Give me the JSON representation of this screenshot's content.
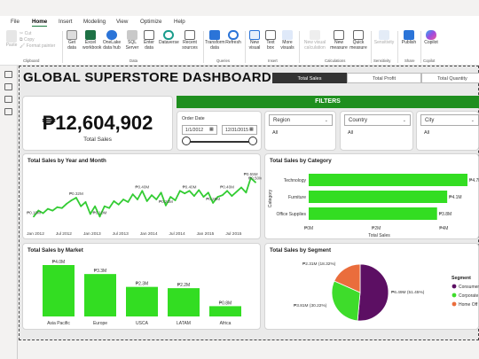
{
  "menu": {
    "items": [
      "File",
      "Home",
      "Insert",
      "Modeling",
      "View",
      "Optimize",
      "Help"
    ],
    "active": "Home"
  },
  "ribbon": {
    "buttons": [
      {
        "label": "Paste",
        "dim": true
      },
      {
        "label": "Cut",
        "dim": true
      },
      {
        "label": "Copy",
        "dim": true
      },
      {
        "label": "Format painter",
        "dim": true
      },
      {
        "label": "Get data",
        "dim": false
      },
      {
        "label": "Excel workbook",
        "dim": false
      },
      {
        "label": "OneLake data hub",
        "dim": false
      },
      {
        "label": "SQL Server",
        "dim": false
      },
      {
        "label": "Enter data",
        "dim": false
      },
      {
        "label": "Dataverse",
        "dim": false
      },
      {
        "label": "Recent sources",
        "dim": false
      },
      {
        "label": "Transform data",
        "dim": false
      },
      {
        "label": "Refresh",
        "dim": false
      },
      {
        "label": "New visual",
        "dim": false
      },
      {
        "label": "Text box",
        "dim": false
      },
      {
        "label": "More visuals",
        "dim": false
      },
      {
        "label": "New visual calculation",
        "dim": true
      },
      {
        "label": "New measure",
        "dim": false
      },
      {
        "label": "Quick measure",
        "dim": false
      },
      {
        "label": "Sensitivity",
        "dim": true
      },
      {
        "label": "Publish",
        "dim": false
      },
      {
        "label": "Copilot",
        "dim": false
      }
    ],
    "groups": [
      "Clipboard",
      "Data",
      "Queries",
      "Insert",
      "Calculations",
      "Sensitivity",
      "Share",
      "Copilot"
    ]
  },
  "dashboard": {
    "title": "GLOBAL SUPERSTORE DASHBOARD",
    "tabs": [
      "Total Sales",
      "Total Profit",
      "Total Quantity"
    ],
    "active_tab": "Total Sales",
    "kpi": {
      "value": "₱12,604,902",
      "label": "Total Sales"
    },
    "filters_label": "FILTERS",
    "order_date": {
      "label": "Order Date",
      "from": "1/1/2012",
      "to": "12/31/2015"
    },
    "region": {
      "label": "Region",
      "value": "All"
    },
    "country": {
      "label": "Country",
      "value": "All"
    },
    "city": {
      "label": "City",
      "value": "All"
    }
  },
  "chart_data": [
    {
      "type": "line",
      "title": "Total Sales by Year and Month",
      "x_ticks": [
        "Jan 2012",
        "Jul 2012",
        "Jan 2013",
        "Jul 2013",
        "Jan 2014",
        "Jul 2014",
        "Jan 2015",
        "Jul 2015"
      ],
      "values": [
        0.1,
        0.17,
        0.14,
        0.19,
        0.17,
        0.21,
        0.2,
        0.25,
        0.29,
        0.32,
        0.22,
        0.27,
        0.13,
        0.22,
        0.1,
        0.22,
        0.2,
        0.28,
        0.24,
        0.3,
        0.27,
        0.36,
        0.3,
        0.4,
        0.28,
        0.35,
        0.3,
        0.38,
        0.23,
        0.33,
        0.29,
        0.4,
        0.37,
        0.4,
        0.34,
        0.41,
        0.33,
        0.38,
        0.26,
        0.33,
        0.35,
        0.4,
        0.34,
        0.39,
        0.44,
        0.38,
        0.55,
        0.5
      ],
      "data_labels": [
        {
          "index": 0,
          "text": "₱0.10M"
        },
        {
          "index": 9,
          "text": "₱0.32M"
        },
        {
          "index": 14,
          "text": "₱0.10M"
        },
        {
          "index": 23,
          "text": "₱0.40M"
        },
        {
          "index": 28,
          "text": "₱0.23M"
        },
        {
          "index": 33,
          "text": "₱0.40M"
        },
        {
          "index": 38,
          "text": "₱0.26M"
        },
        {
          "index": 41,
          "text": "₱0.40M"
        },
        {
          "index": 46,
          "text": "₱0.55M"
        },
        {
          "index": 47,
          "text": "₱0.50M"
        }
      ],
      "color": "#33cc33"
    },
    {
      "type": "bar",
      "orientation": "horizontal",
      "title": "Total Sales by Category",
      "categories": [
        "Technology",
        "Furniture",
        "Office Supplies"
      ],
      "values": [
        4.7,
        4.1,
        3.8
      ],
      "labels": [
        "₱4.7M",
        "₱4.1M",
        "₱3.8M"
      ],
      "xlim": [
        0,
        4.7
      ],
      "x_ticks": [
        "₱0M",
        "₱2M",
        "₱4M"
      ],
      "xlabel": "Total Sales",
      "ylabel": "Category",
      "color": "#33dd22"
    },
    {
      "type": "bar",
      "title": "Total Sales by Market",
      "categories": [
        "Asia Pacific",
        "Europe",
        "USCA",
        "LATAM",
        "Africa"
      ],
      "values": [
        4.0,
        3.3,
        2.3,
        2.2,
        0.8
      ],
      "labels": [
        "₱4.0M",
        "₱3.3M",
        "₱2.3M",
        "₱2.2M",
        "₱0.8M"
      ],
      "ylim": [
        0,
        4.0
      ],
      "color": "#33dd22"
    },
    {
      "type": "pie",
      "title": "Total Sales by Segment",
      "legend_title": "Segment",
      "slices": [
        {
          "name": "Consumer",
          "value": 51.45,
          "label": "₱6.49M (51.45%)",
          "color": "#5c0f63"
        },
        {
          "name": "Corporate",
          "value": 30.22,
          "label": "₱3.81M (30.22%)",
          "color": "#3edc2b"
        },
        {
          "name": "Home Office",
          "value": 18.32,
          "label": "₱2.31M (18.32%)",
          "color": "#ea6d3c"
        }
      ],
      "legend_items": [
        "Consumer",
        "Corporate",
        "Home Off"
      ]
    }
  ]
}
